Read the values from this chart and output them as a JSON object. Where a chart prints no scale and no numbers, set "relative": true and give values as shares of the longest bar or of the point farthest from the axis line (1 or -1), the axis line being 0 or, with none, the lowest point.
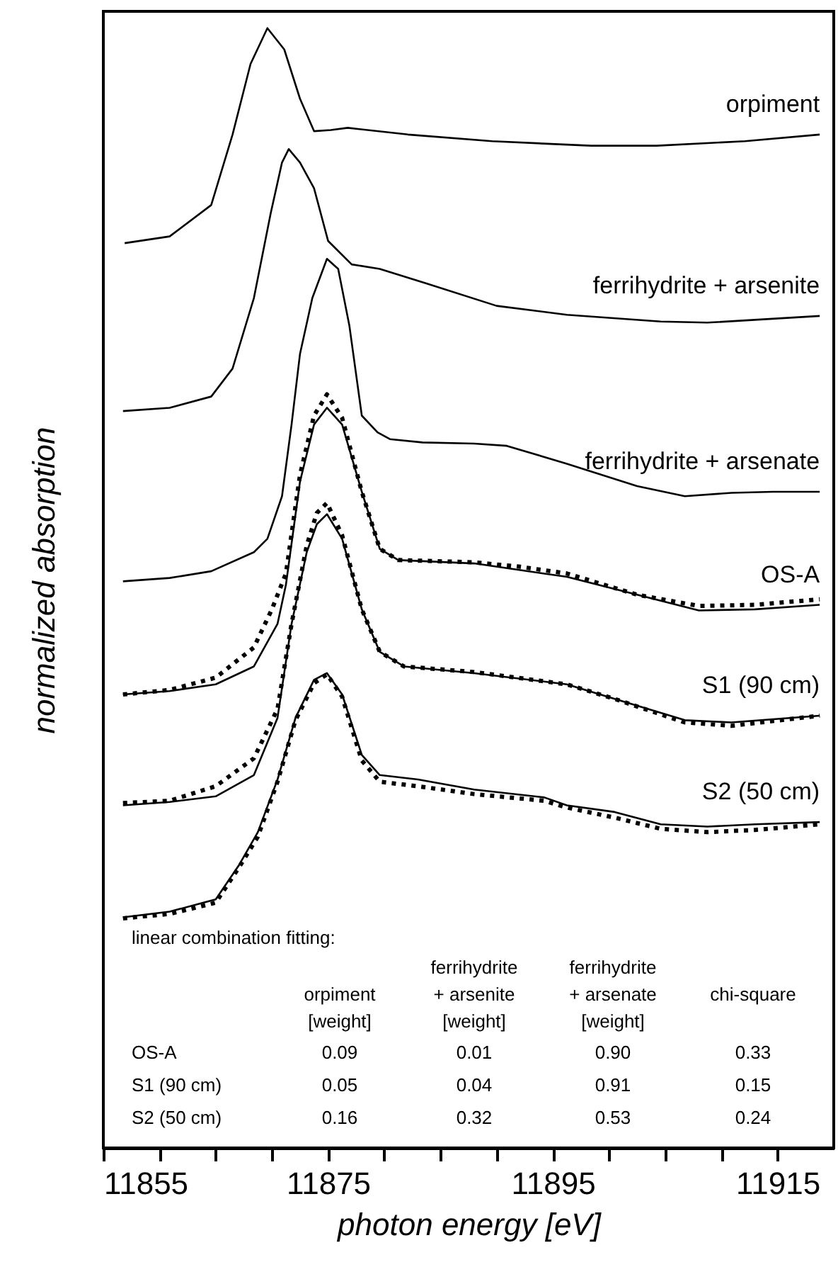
{
  "chart_data": {
    "type": "line",
    "relative": true,
    "xlabel": "photon energy [eV]",
    "ylabel": "normalized absorption",
    "xlim": [
      11855,
      11920
    ],
    "xticks": [
      11855,
      {
        "value": 11860,
        "label": null
      },
      {
        "value": 11865,
        "label": null
      },
      {
        "value": 11870,
        "label": null
      },
      11875,
      {
        "value": 11880,
        "label": null
      },
      {
        "value": 11885,
        "label": null
      },
      {
        "value": 11890,
        "label": null
      },
      11895,
      {
        "value": 11900,
        "label": null
      },
      {
        "value": 11905,
        "label": null
      },
      {
        "value": 11910,
        "label": null
      },
      11915
    ],
    "grid": false,
    "series": [
      {
        "name": "orpiment",
        "color": "#000000",
        "line_style": "solid",
        "x": [
          11856.9,
          11860.9,
          11864.6,
          11866.5,
          11868.1,
          11869.6,
          11871.1,
          11872.5,
          11873.75,
          11875.25,
          11876.75,
          11882.1,
          11889.6,
          11898.4,
          11904.25,
          11912.1,
          11918.75
        ],
        "values": [
          0.808,
          0.814,
          0.842,
          0.905,
          0.968,
          1.0,
          0.981,
          0.937,
          0.908,
          0.909,
          0.911,
          0.905,
          0.899,
          0.895,
          0.895,
          0.899,
          0.905
        ]
      },
      {
        "name": "ferrihydrite + arsenite",
        "color": "#000000",
        "line_style": "solid",
        "x": [
          11856.75,
          11860.9,
          11864.6,
          11866.5,
          11868.4,
          11869.9,
          11870.9,
          11871.5,
          11872.5,
          11873.75,
          11875,
          11877.1,
          11879.6,
          11883.75,
          11890,
          11896.25,
          11904.6,
          11908.75,
          11918.75
        ],
        "values": [
          0.658,
          0.661,
          0.671,
          0.696,
          0.759,
          0.835,
          0.88,
          0.892,
          0.88,
          0.857,
          0.81,
          0.789,
          0.785,
          0.772,
          0.752,
          0.744,
          0.738,
          0.737,
          0.743
        ]
      },
      {
        "name": "ferrihydrite + arsenate",
        "color": "#000000",
        "line_style": "solid",
        "x": [
          11856.75,
          11860.9,
          11864.6,
          11868.4,
          11869.6,
          11870.9,
          11871.75,
          11872.5,
          11873.6,
          11874.9,
          11875.9,
          11876.9,
          11878,
          11879.4,
          11880.5,
          11883.4,
          11888,
          11890.9,
          11896.25,
          11902.5,
          11906.75,
          11910.9,
          11914.6,
          11918.75
        ],
        "values": [
          0.506,
          0.509,
          0.515,
          0.532,
          0.544,
          0.582,
          0.646,
          0.709,
          0.759,
          0.794,
          0.785,
          0.734,
          0.654,
          0.639,
          0.633,
          0.63,
          0.629,
          0.627,
          0.611,
          0.591,
          0.582,
          0.585,
          0.586,
          0.586
        ]
      },
      {
        "name": "OS-A",
        "color": "#000000",
        "line_style": "solid",
        "x": [
          11856.75,
          11860.9,
          11865,
          11868.4,
          11870.5,
          11871.25,
          11872.5,
          11873.75,
          11874.9,
          11876.25,
          11878,
          11879.6,
          11881.25,
          11888,
          11892.1,
          11896.25,
          11902.5,
          11908,
          11913,
          11918.75
        ],
        "values": [
          0.405,
          0.408,
          0.414,
          0.43,
          0.468,
          0.503,
          0.595,
          0.646,
          0.661,
          0.646,
          0.586,
          0.535,
          0.525,
          0.522,
          0.516,
          0.51,
          0.494,
          0.48,
          0.481,
          0.485
        ]
      },
      {
        "color": "#000000",
        "line_style": "dotted",
        "x": [
          11856.75,
          11860.9,
          11865,
          11868.4,
          11870,
          11871.25,
          11872.5,
          11873.75,
          11874.9,
          11876.25,
          11878,
          11879.6,
          11881.25,
          11888,
          11892.1,
          11896.25,
          11902.5,
          11908,
          11913,
          11918.75
        ],
        "values": [
          0.405,
          0.409,
          0.42,
          0.447,
          0.481,
          0.513,
          0.601,
          0.654,
          0.673,
          0.652,
          0.586,
          0.535,
          0.525,
          0.523,
          0.519,
          0.513,
          0.494,
          0.484,
          0.485,
          0.49
        ]
      },
      {
        "name": "S1 (90 cm)",
        "color": "#000000",
        "line_style": "solid",
        "x": [
          11856.75,
          11860.9,
          11865,
          11868.4,
          11870.5,
          11871.75,
          11873.1,
          11874,
          11874.9,
          11876.25,
          11878,
          11879.6,
          11881.75,
          11888,
          11896.25,
          11900.5,
          11906.75,
          11910.9,
          11918.75
        ],
        "values": [
          0.306,
          0.309,
          0.314,
          0.333,
          0.384,
          0.468,
          0.532,
          0.557,
          0.566,
          0.544,
          0.481,
          0.443,
          0.43,
          0.424,
          0.414,
          0.401,
          0.382,
          0.38,
          0.386
        ]
      },
      {
        "color": "#000000",
        "line_style": "dotted",
        "x": [
          11856.75,
          11860.9,
          11865,
          11868.4,
          11870.5,
          11871.75,
          11873.1,
          11874,
          11874.9,
          11876.25,
          11878,
          11879.6,
          11881.75,
          11888,
          11896.25,
          11900.5,
          11906.75,
          11910.9,
          11918.75
        ],
        "values": [
          0.308,
          0.31,
          0.323,
          0.348,
          0.392,
          0.468,
          0.538,
          0.567,
          0.576,
          0.547,
          0.481,
          0.443,
          0.43,
          0.425,
          0.414,
          0.401,
          0.38,
          0.377,
          0.386
        ]
      },
      {
        "name": "S2 (50 cm)",
        "color": "#000000",
        "line_style": "solid",
        "x": [
          11856.75,
          11860.9,
          11865,
          11867.1,
          11868.75,
          11870.5,
          11872.1,
          11873.75,
          11874.9,
          11876.25,
          11878,
          11879.6,
          11883,
          11888,
          11894.25,
          11896.25,
          11900.5,
          11904.6,
          11908.75,
          11913,
          11918.75
        ],
        "values": [
          0.206,
          0.211,
          0.222,
          0.253,
          0.282,
          0.329,
          0.384,
          0.418,
          0.424,
          0.405,
          0.351,
          0.333,
          0.329,
          0.32,
          0.313,
          0.306,
          0.3,
          0.289,
          0.287,
          0.289,
          0.291
        ]
      },
      {
        "color": "#000000",
        "line_style": "dotted",
        "x": [
          11856.75,
          11860.9,
          11865,
          11867.1,
          11868.75,
          11870.5,
          11872.1,
          11873.75,
          11874.9,
          11876.25,
          11878,
          11879.6,
          11883,
          11888,
          11894.25,
          11896.25,
          11900.5,
          11904.6,
          11908.75,
          11913,
          11918.75
        ],
        "values": [
          0.205,
          0.209,
          0.219,
          0.251,
          0.278,
          0.327,
          0.382,
          0.415,
          0.423,
          0.403,
          0.346,
          0.327,
          0.323,
          0.316,
          0.31,
          0.304,
          0.295,
          0.285,
          0.282,
          0.284,
          0.289
        ]
      }
    ],
    "annotations": [
      "linear combination fitting:",
      "orpiment\n[weight]",
      "ferrihydrite\n+ arsenite\n[weight]",
      "ferrihydrite\n+ arsenate\n[weight]",
      "chi-square",
      "OS-A",
      "0.09",
      "0.01",
      "0.90",
      "0.33",
      "S1 (90 cm)",
      "0.05",
      "0.04",
      "0.91",
      "0.15",
      "S2 (50 cm)",
      "0.16",
      "0.32",
      "0.53",
      "0.24"
    ]
  }
}
